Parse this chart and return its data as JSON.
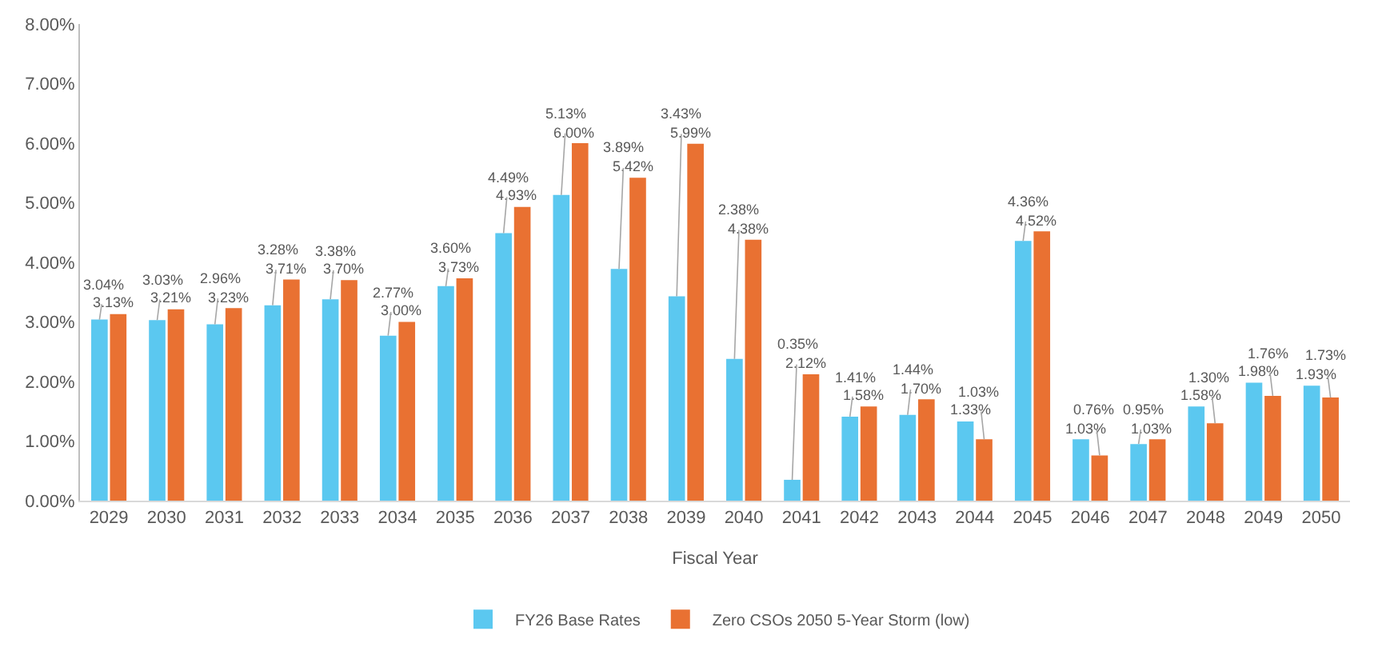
{
  "chart_data": {
    "type": "bar",
    "xlabel": "Fiscal Year",
    "categories": [
      "2029",
      "2030",
      "2031",
      "2032",
      "2033",
      "2034",
      "2035",
      "2036",
      "2037",
      "2038",
      "2039",
      "2040",
      "2041",
      "2042",
      "2043",
      "2044",
      "2045",
      "2046",
      "2047",
      "2048",
      "2049",
      "2050"
    ],
    "series": [
      {
        "name": "FY26 Base Rates",
        "color": "#5bc8f0",
        "values": [
          3.04,
          3.03,
          2.96,
          3.28,
          3.38,
          2.77,
          3.6,
          4.49,
          5.13,
          3.89,
          3.43,
          2.38,
          0.35,
          1.41,
          1.44,
          1.33,
          4.36,
          1.03,
          0.95,
          1.58,
          1.98,
          1.93
        ],
        "value_labels": [
          "3.04%",
          "3.03%",
          "2.96%",
          "3.28%",
          "3.38%",
          "2.77%",
          "3.60%",
          "4.49%",
          "5.13%",
          "3.89%",
          "3.43%",
          "2.38%",
          "0.35%",
          "1.41%",
          "1.44%",
          "1.33%",
          "4.36%",
          "1.03%",
          "0.95%",
          "1.58%",
          "1.98%",
          "1.93%"
        ]
      },
      {
        "name": "Zero CSOs 2050 5-Year Storm (low)",
        "color": "#e97132",
        "values": [
          3.13,
          3.21,
          3.23,
          3.71,
          3.7,
          3.0,
          3.73,
          4.93,
          6.0,
          5.42,
          5.99,
          4.38,
          2.12,
          1.58,
          1.7,
          1.03,
          4.52,
          0.76,
          1.03,
          1.3,
          1.76,
          1.73
        ],
        "value_labels": [
          "3.13%",
          "3.21%",
          "3.23%",
          "3.71%",
          "3.70%",
          "3.00%",
          "3.73%",
          "4.93%",
          "6.00%",
          "5.42%",
          "5.99%",
          "4.38%",
          "2.12%",
          "1.58%",
          "1.70%",
          "1.03%",
          "4.52%",
          "0.76%",
          "1.03%",
          "1.30%",
          "1.76%",
          "1.73%"
        ]
      }
    ],
    "ylim": [
      0,
      8
    ],
    "yticks": [
      {
        "value": 0,
        "label": "0.00%"
      },
      {
        "value": 1,
        "label": "1.00%"
      },
      {
        "value": 2,
        "label": "2.00%"
      },
      {
        "value": 3,
        "label": "3.00%"
      },
      {
        "value": 4,
        "label": "4.00%"
      },
      {
        "value": 5,
        "label": "5.00%"
      },
      {
        "value": 6,
        "label": "6.00%"
      },
      {
        "value": 7,
        "label": "7.00%"
      },
      {
        "value": 8,
        "label": "8.00%"
      }
    ],
    "legend": "bottom"
  }
}
